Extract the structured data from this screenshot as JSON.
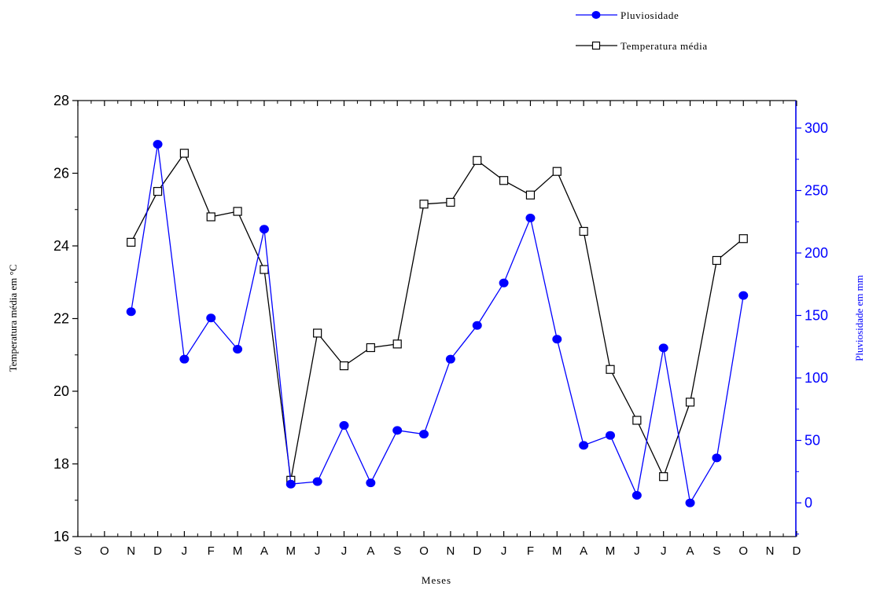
{
  "chart_data": {
    "type": "line",
    "xlabel": "Meses",
    "ylabel_left": "Temperatura média em °C",
    "ylabel_right": "Pluviosidade em mm",
    "x_tick_labels": [
      "S",
      "O",
      "N",
      "D",
      "J",
      "F",
      "M",
      "A",
      "M",
      "J",
      "J",
      "A",
      "S",
      "O",
      "N",
      "D",
      "J",
      "F",
      "M",
      "A",
      "M",
      "J",
      "J",
      "A",
      "S",
      "O",
      "N",
      "D"
    ],
    "y_left": {
      "range": [
        16,
        28
      ],
      "ticks": [
        16,
        18,
        20,
        22,
        24,
        26,
        28
      ]
    },
    "y_right": {
      "range": [
        -27,
        322
      ],
      "ticks": [
        0,
        50,
        100,
        150,
        200,
        250,
        300
      ]
    },
    "legend_position": "top-right",
    "series": [
      {
        "name": "Pluviosidade",
        "axis": "right",
        "color": "#0000ff",
        "marker": "filled-circle",
        "start_index": 2,
        "values": [
          153,
          287,
          115,
          148,
          123,
          219,
          15,
          17,
          62,
          16,
          58,
          55,
          115,
          142,
          176,
          228,
          131,
          46,
          54,
          6,
          124,
          0,
          36,
          166
        ]
      },
      {
        "name": "Temperatura média",
        "axis": "left",
        "color": "#000000",
        "marker": "open-square",
        "start_index": 2,
        "values": [
          24.1,
          25.5,
          26.55,
          24.8,
          24.95,
          23.35,
          17.55,
          21.6,
          20.7,
          21.2,
          21.3,
          25.15,
          25.2,
          26.35,
          25.8,
          25.4,
          26.05,
          24.4,
          20.6,
          19.2,
          17.65,
          19.7,
          23.6,
          24.2
        ]
      }
    ]
  }
}
